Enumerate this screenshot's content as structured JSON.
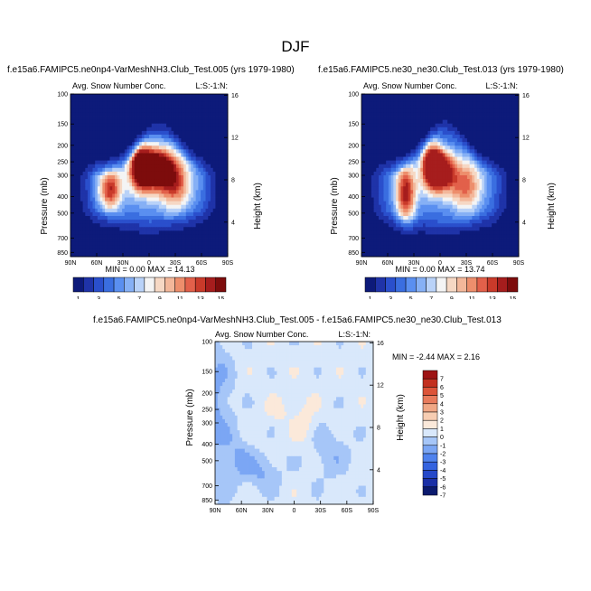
{
  "main_title": "DJF",
  "colors": {
    "seq": [
      "#0d1a7a",
      "#1f33a8",
      "#2a4fcc",
      "#3a6ee0",
      "#5a8ff0",
      "#86b0f5",
      "#b9d2f8",
      "#f4f4f4",
      "#f6d8c4",
      "#f3b79a",
      "#ed8e6c",
      "#e2604a",
      "#c93a2a",
      "#a61d1d",
      "#7d0c0c"
    ],
    "diff": [
      "#0b1a6e",
      "#1a2fa6",
      "#2548c9",
      "#3463df",
      "#4f82ee",
      "#7ba6f4",
      "#a6c6f8",
      "#d9e8fb",
      "#fbe9da",
      "#f7cdb2",
      "#f0a785",
      "#e87b5c",
      "#dc5439",
      "#c3301f",
      "#9e1414"
    ]
  },
  "chart_data": [
    {
      "id": "case-a",
      "type": "heatmap",
      "title": "f.e15a6.FAMIPC5.ne0np4-VarMeshNH3.Club_Test.005 (yrs 1979-1980)",
      "subtitle_left": "Avg. Snow Number Conc.",
      "subtitle_right": "L:S:-1:N:",
      "ylabel": "Pressure (mb)",
      "ylabel_right": "Height (km)",
      "x_ticks": [
        "90N",
        "60N",
        "30N",
        "0",
        "30S",
        "60S",
        "90S"
      ],
      "y_ticks": [
        "100",
        "150",
        "200",
        "250",
        "300",
        "400",
        "500",
        "700",
        "850"
      ],
      "height_ticks": [
        "16",
        "12",
        "8",
        "4"
      ],
      "stats": "MIN =  0.00  MAX = 14.13",
      "min": 0.0,
      "max": 14.13,
      "colorbar_labels": [
        "1",
        "3",
        "5",
        "7",
        "9",
        "11",
        "13",
        "15"
      ],
      "levels": [
        1,
        2,
        3,
        4,
        5,
        6,
        7,
        8,
        9,
        10,
        11,
        12,
        13,
        14,
        15
      ]
    },
    {
      "id": "case-b",
      "type": "heatmap",
      "title": "f.e15a6.FAMIPC5.ne30_ne30.Club_Test.013 (yrs 1979-1980)",
      "subtitle_left": "Avg. Snow Number Conc.",
      "subtitle_right": "L:S:-1:N:",
      "ylabel": "Pressure (mb)",
      "ylabel_right": "Height (km)",
      "x_ticks": [
        "90N",
        "60N",
        "30N",
        "0",
        "30S",
        "60S",
        "90S"
      ],
      "y_ticks": [
        "100",
        "150",
        "200",
        "250",
        "300",
        "400",
        "500",
        "700",
        "850"
      ],
      "height_ticks": [
        "16",
        "12",
        "8",
        "4"
      ],
      "stats": "MIN =  0.00  MAX = 13.74",
      "min": 0.0,
      "max": 13.74,
      "colorbar_labels": [
        "1",
        "3",
        "5",
        "7",
        "9",
        "11",
        "13",
        "15"
      ],
      "levels": [
        1,
        2,
        3,
        4,
        5,
        6,
        7,
        8,
        9,
        10,
        11,
        12,
        13,
        14,
        15
      ]
    },
    {
      "id": "difference",
      "type": "heatmap",
      "title": "f.e15a6.FAMIPC5.ne0np4-VarMeshNH3.Club_Test.005 - f.e15a6.FAMIPC5.ne30_ne30.Club_Test.013",
      "subtitle_left": "Avg. Snow Number Conc.",
      "subtitle_right": "L:S:-1:N:",
      "ylabel": "Pressure (mb)",
      "ylabel_right": "Height (km)",
      "x_ticks": [
        "90N",
        "60N",
        "30N",
        "0",
        "30S",
        "60S",
        "90S"
      ],
      "y_ticks": [
        "100",
        "150",
        "200",
        "250",
        "300",
        "400",
        "500",
        "700",
        "850"
      ],
      "height_ticks": [
        "16",
        "12",
        "8",
        "4"
      ],
      "stats": "MIN = -2.44  MAX =  2.16",
      "min": -2.44,
      "max": 2.16,
      "colorbar_labels": [
        "7",
        "6",
        "5",
        "4",
        "3",
        "2",
        "1",
        "0",
        "-1",
        "-2",
        "-3",
        "-4",
        "-5",
        "-6",
        "-7"
      ],
      "levels": [
        -7,
        -6,
        -5,
        -4,
        -3,
        -2,
        -1,
        0,
        1,
        2,
        3,
        4,
        5,
        6,
        7
      ]
    }
  ]
}
